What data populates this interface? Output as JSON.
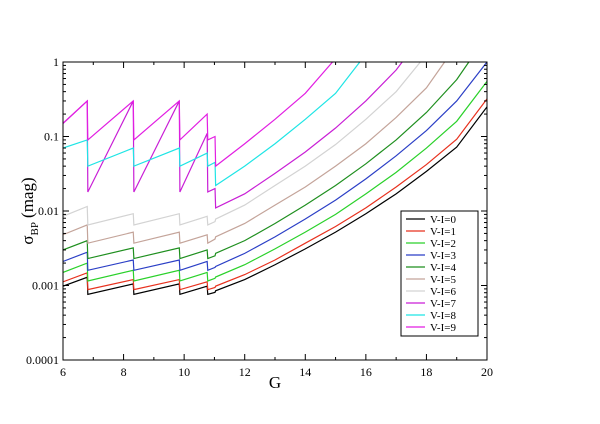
{
  "chart_data": {
    "type": "line",
    "title": "",
    "xlabel": "G",
    "ylabel": {
      "symbol": "σ",
      "subscript": "BP",
      "unit": "(mag)"
    },
    "xlim": [
      6,
      20
    ],
    "ylim": [
      0.0001,
      1
    ],
    "yscale": "log",
    "grid": false,
    "legend_position": "bottom-right",
    "x_ticks": [
      {
        "value": 6,
        "label": "6"
      },
      {
        "value": 8,
        "label": "8"
      },
      {
        "value": 10,
        "label": "10"
      },
      {
        "value": 12,
        "label": "12"
      },
      {
        "value": 14,
        "label": "14"
      },
      {
        "value": 16,
        "label": "16"
      },
      {
        "value": 18,
        "label": "18"
      },
      {
        "value": 20,
        "label": "20"
      }
    ],
    "y_ticks": [
      {
        "value": 0.0001,
        "label": "0.0001"
      },
      {
        "value": 0.001,
        "label": "0.001"
      },
      {
        "value": 0.01,
        "label": "0.01"
      },
      {
        "value": 0.1,
        "label": "0.1"
      },
      {
        "value": 1,
        "label": "1"
      }
    ],
    "series": [
      {
        "name": "V-I=0",
        "color": "#000000",
        "points": [
          [
            6.0,
            0.00098
          ],
          [
            6.8,
            0.00129
          ],
          [
            6.82,
            0.00076
          ],
          [
            8.32,
            0.00105
          ],
          [
            8.34,
            0.00076
          ],
          [
            9.84,
            0.00105
          ],
          [
            9.86,
            0.00076
          ],
          [
            10.76,
            0.00098
          ],
          [
            10.78,
            0.00076
          ],
          [
            11.02,
            0.00081
          ],
          [
            11.04,
            0.00085
          ],
          [
            12,
            0.0012
          ],
          [
            13,
            0.0019
          ],
          [
            14,
            0.0031
          ],
          [
            15,
            0.0052
          ],
          [
            16,
            0.0092
          ],
          [
            17,
            0.017
          ],
          [
            18,
            0.034
          ],
          [
            19,
            0.072
          ],
          [
            20,
            0.25
          ]
        ]
      },
      {
        "name": "V-I=1",
        "color": "#e8311e",
        "points": [
          [
            6.0,
            0.00112
          ],
          [
            6.8,
            0.00148
          ],
          [
            6.82,
            0.00088
          ],
          [
            8.32,
            0.0012
          ],
          [
            8.34,
            0.00088
          ],
          [
            9.84,
            0.0012
          ],
          [
            9.86,
            0.00088
          ],
          [
            10.76,
            0.00112
          ],
          [
            10.78,
            0.00088
          ],
          [
            11.02,
            0.00094
          ],
          [
            11.04,
            0.00098
          ],
          [
            12,
            0.0014
          ],
          [
            13,
            0.0022
          ],
          [
            14,
            0.0037
          ],
          [
            15,
            0.0062
          ],
          [
            16,
            0.011
          ],
          [
            17,
            0.021
          ],
          [
            18,
            0.042
          ],
          [
            19,
            0.092
          ],
          [
            20,
            0.32
          ]
        ]
      },
      {
        "name": "V-I=2",
        "color": "#2ad12a",
        "points": [
          [
            6.0,
            0.0015
          ],
          [
            6.8,
            0.002
          ],
          [
            6.82,
            0.00115
          ],
          [
            8.32,
            0.0016
          ],
          [
            8.34,
            0.00115
          ],
          [
            9.84,
            0.0016
          ],
          [
            9.86,
            0.00115
          ],
          [
            10.76,
            0.0015
          ],
          [
            10.78,
            0.00115
          ],
          [
            11.02,
            0.00125
          ],
          [
            11.04,
            0.0013
          ],
          [
            12,
            0.0019
          ],
          [
            13,
            0.0031
          ],
          [
            14,
            0.0052
          ],
          [
            15,
            0.009
          ],
          [
            16,
            0.017
          ],
          [
            17,
            0.033
          ],
          [
            18,
            0.07
          ],
          [
            19,
            0.16
          ],
          [
            20,
            0.55
          ]
        ]
      },
      {
        "name": "V-I=3",
        "color": "#2b3fc6",
        "points": [
          [
            6.0,
            0.0021
          ],
          [
            6.8,
            0.0028
          ],
          [
            6.82,
            0.0016
          ],
          [
            8.32,
            0.0022
          ],
          [
            8.34,
            0.0016
          ],
          [
            9.84,
            0.0022
          ],
          [
            9.86,
            0.0016
          ],
          [
            10.76,
            0.0021
          ],
          [
            10.78,
            0.0016
          ],
          [
            11.02,
            0.00175
          ],
          [
            11.04,
            0.0018
          ],
          [
            12,
            0.0027
          ],
          [
            13,
            0.0045
          ],
          [
            14,
            0.0078
          ],
          [
            15,
            0.014
          ],
          [
            16,
            0.027
          ],
          [
            17,
            0.055
          ],
          [
            18,
            0.12
          ],
          [
            19,
            0.3
          ],
          [
            20,
            1.0
          ]
        ]
      },
      {
        "name": "V-I=4",
        "color": "#1f8f1f",
        "points": [
          [
            6.0,
            0.003
          ],
          [
            6.8,
            0.004
          ],
          [
            6.82,
            0.0023
          ],
          [
            8.32,
            0.0032
          ],
          [
            8.34,
            0.0023
          ],
          [
            9.84,
            0.0032
          ],
          [
            9.86,
            0.0023
          ],
          [
            10.76,
            0.003
          ],
          [
            10.78,
            0.0023
          ],
          [
            11.02,
            0.0025
          ],
          [
            11.04,
            0.0027
          ],
          [
            12,
            0.004
          ],
          [
            13,
            0.0068
          ],
          [
            14,
            0.012
          ],
          [
            15,
            0.022
          ],
          [
            16,
            0.043
          ],
          [
            17,
            0.09
          ],
          [
            18,
            0.21
          ],
          [
            19,
            0.58
          ],
          [
            19.4,
            1.0
          ]
        ]
      },
      {
        "name": "V-I=5",
        "color": "#c4a49a",
        "points": [
          [
            6.0,
            0.0048
          ],
          [
            6.8,
            0.0065
          ],
          [
            6.82,
            0.0037
          ],
          [
            8.32,
            0.0052
          ],
          [
            8.34,
            0.0037
          ],
          [
            9.84,
            0.0052
          ],
          [
            9.86,
            0.0037
          ],
          [
            10.76,
            0.0048
          ],
          [
            10.78,
            0.0037
          ],
          [
            11.02,
            0.0042
          ],
          [
            11.04,
            0.0045
          ],
          [
            12,
            0.0068
          ],
          [
            13,
            0.012
          ],
          [
            14,
            0.021
          ],
          [
            15,
            0.04
          ],
          [
            16,
            0.08
          ],
          [
            17,
            0.18
          ],
          [
            18,
            0.45
          ],
          [
            18.6,
            1.0
          ]
        ]
      },
      {
        "name": "V-I=6",
        "color": "#d3d3d3",
        "points": [
          [
            6.0,
            0.0085
          ],
          [
            6.8,
            0.0115
          ],
          [
            6.82,
            0.0065
          ],
          [
            8.32,
            0.0092
          ],
          [
            8.34,
            0.0065
          ],
          [
            9.84,
            0.0092
          ],
          [
            9.86,
            0.0065
          ],
          [
            10.76,
            0.0085
          ],
          [
            10.78,
            0.0065
          ],
          [
            11.02,
            0.0072
          ],
          [
            11.04,
            0.0078
          ],
          [
            12,
            0.012
          ],
          [
            13,
            0.022
          ],
          [
            14,
            0.04
          ],
          [
            15,
            0.078
          ],
          [
            16,
            0.17
          ],
          [
            17,
            0.4
          ],
          [
            17.8,
            1.0
          ]
        ]
      },
      {
        "name": "V-I=7",
        "color": "#c91fd6",
        "points": [
          [
            6.0,
            0.15
          ],
          [
            6.8,
            0.3
          ],
          [
            6.82,
            0.018
          ],
          [
            8.32,
            0.3
          ],
          [
            8.34,
            0.018
          ],
          [
            9.84,
            0.3
          ],
          [
            9.86,
            0.018
          ],
          [
            10.76,
            0.11
          ],
          [
            10.78,
            0.018
          ],
          [
            11.02,
            0.02
          ],
          [
            11.04,
            0.011
          ],
          [
            12,
            0.017
          ],
          [
            13,
            0.032
          ],
          [
            14,
            0.062
          ],
          [
            15,
            0.13
          ],
          [
            16,
            0.3
          ],
          [
            17,
            0.78
          ],
          [
            17.2,
            1.0
          ]
        ]
      },
      {
        "name": "V-I=8",
        "color": "#1fe5e5",
        "points": [
          [
            6.0,
            0.07
          ],
          [
            6.8,
            0.09
          ],
          [
            6.82,
            0.04
          ],
          [
            8.32,
            0.07
          ],
          [
            8.34,
            0.04
          ],
          [
            9.84,
            0.07
          ],
          [
            9.86,
            0.04
          ],
          [
            10.76,
            0.06
          ],
          [
            10.78,
            0.04
          ],
          [
            11.02,
            0.045
          ],
          [
            11.04,
            0.022
          ],
          [
            12,
            0.04
          ],
          [
            13,
            0.08
          ],
          [
            14,
            0.17
          ],
          [
            15,
            0.38
          ],
          [
            15.8,
            1.0
          ]
        ]
      },
      {
        "name": "V-I=9",
        "color": "#e21fe2",
        "points": [
          [
            6.0,
            0.15
          ],
          [
            6.8,
            0.3
          ],
          [
            6.82,
            0.09
          ],
          [
            8.32,
            0.3
          ],
          [
            8.34,
            0.09
          ],
          [
            9.84,
            0.3
          ],
          [
            9.86,
            0.09
          ],
          [
            10.76,
            0.2
          ],
          [
            10.78,
            0.09
          ],
          [
            11.02,
            0.1
          ],
          [
            11.04,
            0.04
          ],
          [
            12,
            0.08
          ],
          [
            13,
            0.17
          ],
          [
            14,
            0.38
          ],
          [
            14.9,
            1.0
          ]
        ]
      }
    ]
  }
}
